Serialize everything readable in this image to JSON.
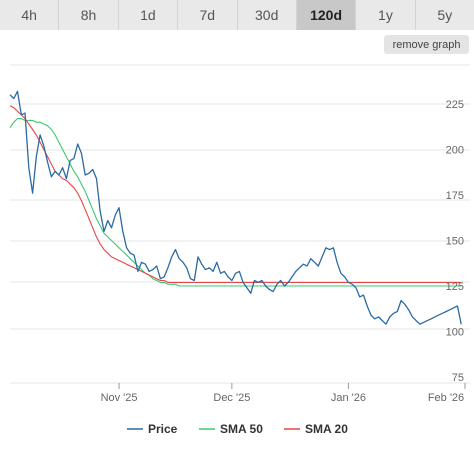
{
  "timeframes": [
    "4h",
    "8h",
    "1d",
    "7d",
    "30d",
    "120d",
    "1y",
    "5y"
  ],
  "active_timeframe": "120d",
  "remove_graph_label": "remove graph",
  "colors": {
    "price": "#2b6aa3",
    "sma50": "#3cc870",
    "sma20": "#e64646",
    "grid": "#e6e6e6"
  },
  "chart_data": {
    "type": "line",
    "x": [
      0,
      1,
      2,
      3,
      4,
      5,
      6,
      7,
      8,
      9,
      10,
      11,
      12,
      13,
      14,
      15,
      16,
      17,
      18,
      19,
      20,
      21,
      22,
      23,
      24,
      25,
      26,
      27,
      28,
      29,
      30,
      31,
      32,
      33,
      34,
      35,
      36,
      37,
      38,
      39,
      40,
      41,
      42,
      43,
      44,
      45,
      46,
      47,
      48,
      49,
      50,
      51,
      52,
      53,
      54,
      55,
      56,
      57,
      58,
      59,
      60,
      61,
      62,
      63,
      64,
      65,
      66,
      67,
      68,
      69,
      70,
      71,
      72,
      73,
      74,
      75,
      76,
      77,
      78,
      79,
      80,
      81,
      82,
      83,
      84,
      85,
      86,
      87,
      88,
      89,
      90,
      91,
      92,
      93,
      94,
      95,
      96,
      97,
      98,
      99,
      100,
      101,
      102,
      103,
      104,
      105,
      106,
      107,
      108,
      109,
      110,
      111,
      112,
      113,
      114,
      115,
      116,
      117,
      118,
      119,
      120
    ],
    "x_ticks": [
      {
        "label": "Nov '25",
        "x": 29
      },
      {
        "label": "Dec '25",
        "x": 59
      },
      {
        "label": "Jan '26",
        "x": 90
      },
      {
        "label": "Feb '26",
        "x": 121
      }
    ],
    "y_ticks": [
      75,
      100,
      125,
      150,
      175,
      200,
      225
    ],
    "ylim": [
      72,
      240
    ],
    "xlim": [
      0,
      121
    ],
    "grid": true,
    "legend_position": "bottom",
    "series": [
      {
        "name": "Price",
        "color": "#2b6aa3",
        "values": [
          230,
          228,
          232,
          219,
          220,
          190,
          176,
          196,
          208,
          202,
          193,
          185,
          188,
          186,
          190,
          184,
          194,
          195,
          203,
          198,
          186,
          187,
          189,
          184,
          166,
          155,
          161,
          157,
          164,
          168,
          155,
          146,
          143,
          142,
          133,
          138,
          137,
          133,
          134,
          136,
          129,
          130,
          135,
          141,
          145,
          140,
          138,
          135,
          129,
          128,
          141,
          137,
          134,
          135,
          133,
          138,
          132,
          133,
          130,
          128,
          132,
          133,
          127,
          124,
          121,
          128,
          127,
          128,
          125,
          123,
          122,
          126,
          128,
          125,
          127,
          130,
          133,
          135,
          137,
          136,
          140,
          138,
          136,
          141,
          146,
          145,
          146,
          138,
          132,
          130,
          127,
          126,
          124,
          119,
          120,
          114,
          109,
          107,
          108,
          106,
          104,
          108,
          110,
          111,
          117,
          115,
          112,
          108,
          106,
          104,
          105,
          106,
          107,
          108,
          109,
          110,
          111,
          112,
          113,
          114,
          104
        ],
        "smooth_end": 110
      },
      {
        "name": "SMA 50",
        "color": "#3cc870",
        "values": [
          212,
          215,
          217,
          217,
          216,
          216,
          216,
          215,
          215,
          214,
          213,
          211,
          208,
          204,
          200,
          196,
          192,
          188,
          185,
          181,
          177,
          172,
          167,
          162,
          158,
          154,
          152,
          150,
          148,
          146,
          144,
          142,
          140,
          138,
          136,
          134,
          132,
          131,
          129,
          128,
          127,
          127,
          126,
          126,
          126,
          125,
          125,
          125,
          125,
          125,
          125,
          125,
          125,
          125,
          125,
          125,
          125,
          125,
          125,
          125,
          125,
          125,
          125,
          125,
          125,
          125,
          125,
          125,
          125,
          125,
          125,
          125,
          125,
          125,
          125,
          125,
          125,
          125,
          125,
          125,
          125,
          125,
          125,
          125,
          125,
          125,
          125,
          125,
          125,
          125,
          125,
          125,
          125,
          125,
          125,
          125,
          125,
          125,
          125,
          125,
          125,
          125,
          125,
          125,
          125,
          125,
          125,
          125,
          125,
          125,
          125,
          125,
          125,
          125,
          125,
          125,
          125,
          125,
          125,
          125,
          125
        ],
        "smooth_end": 110
      },
      {
        "name": "SMA 20",
        "color": "#e64646",
        "values": [
          224,
          223,
          221,
          219,
          217,
          214,
          211,
          208,
          204,
          200,
          196,
          192,
          188,
          186,
          184,
          183,
          181,
          179,
          176,
          172,
          167,
          162,
          157,
          152,
          148,
          145,
          143,
          141,
          140,
          139,
          138,
          137,
          136,
          135,
          134,
          133,
          132,
          131,
          130,
          129,
          128,
          128,
          127,
          127,
          127,
          127,
          127,
          127,
          127,
          127,
          127,
          127,
          127,
          127,
          127,
          127,
          127,
          127,
          127,
          127,
          127,
          127,
          127,
          127,
          127,
          127,
          127,
          127,
          127,
          127,
          127,
          127,
          127,
          127,
          127,
          127,
          127,
          127,
          127,
          127,
          127,
          127,
          127,
          127,
          127,
          127,
          127,
          127,
          127,
          127,
          127,
          127,
          127,
          127,
          127,
          127,
          127,
          127,
          127,
          127,
          127,
          127,
          127,
          127,
          127,
          127,
          127,
          127,
          127,
          127,
          127,
          127,
          127,
          127,
          127,
          127,
          127,
          127,
          127,
          127,
          127
        ],
        "smooth_end": 110
      }
    ]
  }
}
